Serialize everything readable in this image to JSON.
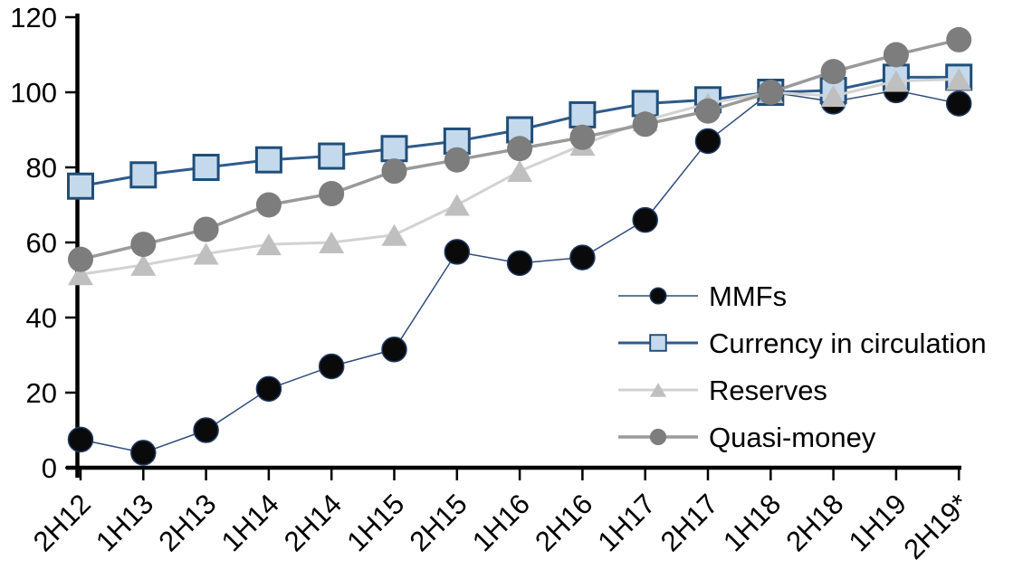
{
  "chart_data": {
    "type": "line",
    "title": "",
    "xlabel": "",
    "ylabel": "",
    "ylim": [
      0,
      120
    ],
    "yticks": [
      0,
      20,
      40,
      60,
      80,
      100,
      120
    ],
    "grid": "off",
    "legend_position": "inside-right",
    "categories": [
      "2H12",
      "1H13",
      "2H13",
      "1H14",
      "2H14",
      "1H15",
      "2H15",
      "1H16",
      "2H16",
      "1H17",
      "2H17",
      "1H18",
      "2H18",
      "1H19",
      "2H19*"
    ],
    "series": [
      {
        "name": "MMFs",
        "marker": "circle",
        "line_color": "#2F4C7C",
        "line_width": 1.5,
        "marker_fill": "#0A0A0A",
        "marker_stroke": "#1F3864",
        "values": [
          7.5,
          4,
          10,
          21,
          27,
          31.5,
          57.5,
          54.5,
          56,
          66,
          87,
          100,
          97.5,
          100.5,
          97
        ]
      },
      {
        "name": "Currency in circulation",
        "marker": "square",
        "line_color": "#2E5B8C",
        "line_width": 3,
        "marker_fill": "#C5D9ED",
        "marker_stroke": "#1F4E79",
        "values": [
          75,
          78,
          80,
          82,
          83,
          85,
          87,
          90,
          94,
          97,
          98,
          100,
          100.5,
          104,
          104
        ]
      },
      {
        "name": "Reserves",
        "marker": "triangle",
        "line_color": "#D2D2D2",
        "line_width": 3,
        "marker_fill": "#BFBFBF",
        "marker_stroke": "none",
        "values": [
          51.5,
          54,
          57,
          59.5,
          60,
          62,
          70,
          79,
          86,
          92.5,
          97,
          100,
          99,
          103,
          103.5
        ]
      },
      {
        "name": "Quasi-money",
        "marker": "circle",
        "line_color": "#9A9A9A",
        "line_width": 3.5,
        "marker_fill": "#7D7D7D",
        "marker_stroke": "none",
        "values": [
          55.5,
          59.5,
          63.5,
          70,
          73,
          79,
          82,
          85,
          88,
          91.5,
          95,
          100,
          105.5,
          110,
          114
        ]
      }
    ]
  }
}
